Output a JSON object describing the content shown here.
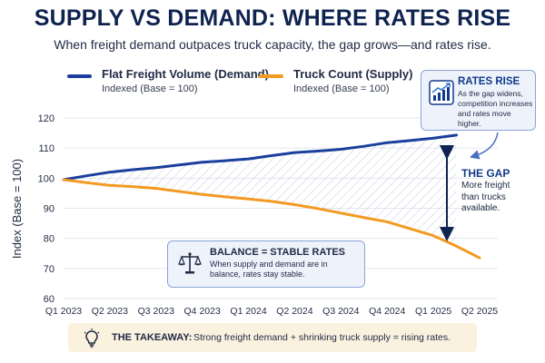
{
  "title": "SUPPLY VS DEMAND: WHERE RATES RISE",
  "subtitle": "When freight demand outpaces truck capacity, the gap grows—and rates rise.",
  "legend": [
    {
      "name": "Flat Freight Volume (Demand)",
      "sub": "Indexed (Base = 100)",
      "color": "#1a3f9c"
    },
    {
      "name": "Truck Count (Supply)",
      "sub": "Indexed (Base = 100)",
      "color": "#f39a22"
    }
  ],
  "rates_box": {
    "title": "RATES RISE",
    "body": "As the gap widens, competition increases and rates move higher.",
    "icon": "rising-bar-chart-icon"
  },
  "gap_note": {
    "title": "THE GAP",
    "body": "More freight than trucks available."
  },
  "balance_box": {
    "title": "BALANCE = STABLE RATES",
    "body": "When supply and demand are in balance, rates stay stable.",
    "icon": "balance-scale-icon"
  },
  "takeaway": {
    "label": "THE TAKEAWAY:",
    "text": "Strong freight demand + shrinking truck supply = rising rates.",
    "icon": "lightbulb-icon"
  },
  "chart_data": {
    "type": "line",
    "ylabel": "Index (Base = 100)",
    "xlabel": "",
    "ylim": [
      60,
      120
    ],
    "yticks": [
      60,
      70,
      80,
      90,
      100,
      110,
      120
    ],
    "grid": true,
    "legend_position": "top",
    "categories": [
      "Q1 2023",
      "Q2 2023",
      "Q3 2023",
      "Q4 2023",
      "Q1 2024",
      "Q2 2024",
      "Q3 2024",
      "Q4 2024",
      "Q1 2025",
      "Q2 2025"
    ],
    "series": [
      {
        "name": "Flat Freight Volume (Demand)",
        "color": "#1a3f9c",
        "x": [
          0,
          0.5,
          1,
          1.5,
          2,
          2.5,
          3,
          3.5,
          4,
          4.5,
          5,
          5.5,
          6,
          6.5,
          7,
          7.5,
          8,
          8.5
        ],
        "values": [
          99.5,
          100.8,
          102,
          102.8,
          103.5,
          104.4,
          105.3,
          105.8,
          106.4,
          107.5,
          108.5,
          109.0,
          109.6,
          110.6,
          111.8,
          112.5,
          113.3,
          114.3
        ]
      },
      {
        "name": "Truck Count (Supply)",
        "color": "#f39a22",
        "x": [
          0,
          0.5,
          1,
          1.5,
          2,
          2.5,
          3,
          3.5,
          4,
          4.5,
          5,
          5.5,
          6,
          6.5,
          7,
          7.5,
          8,
          8.5,
          9
        ],
        "values": [
          99.5,
          98.5,
          97.6,
          97.2,
          96.6,
          95.6,
          94.6,
          93.8,
          93.1,
          92.3,
          91.2,
          89.9,
          88.4,
          86.9,
          85.5,
          83.2,
          80.9,
          77.4,
          73.5
        ]
      }
    ]
  }
}
